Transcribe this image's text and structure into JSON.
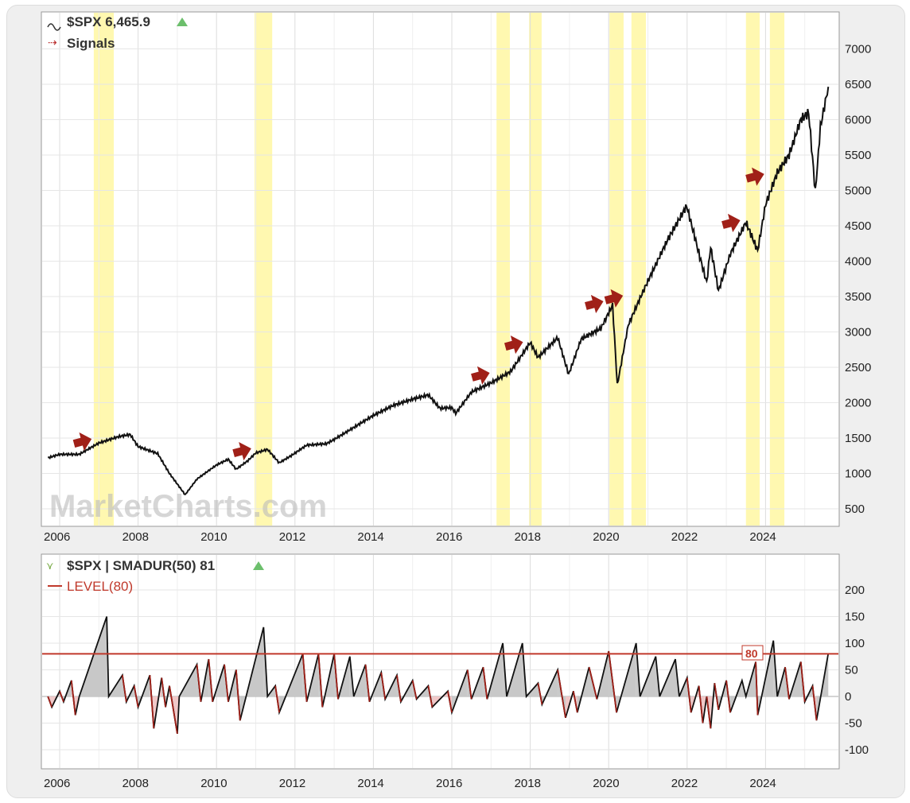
{
  "header": {
    "symbol_label": "$SPX 6,465.9",
    "signals_label": "Signals",
    "lower_label": "$SPX | SMADUR(50) 81",
    "level_label": "LEVEL(80)",
    "level_tag": "80",
    "watermark": "MarketCharts.com"
  },
  "colors": {
    "price": "#111111",
    "band": "#fff8b0",
    "arrow": "#a02018",
    "level": "#c0392b",
    "up": "#6cbf6c",
    "osc_pos": "#c8c8c8",
    "osc_neg": "#f0c8c8"
  },
  "chart_data": [
    {
      "type": "line",
      "title": "$SPX 6,465.9",
      "ylim": [
        250,
        7400
      ],
      "xlim": [
        2005.6,
        2025.75
      ],
      "yticks": [
        500,
        1000,
        1500,
        2000,
        2500,
        3000,
        3500,
        4000,
        4500,
        5000,
        5500,
        6000,
        6500,
        7000
      ],
      "xticks": [
        2006,
        2008,
        2010,
        2012,
        2014,
        2016,
        2018,
        2020,
        2022,
        2024
      ],
      "bands": [
        [
          2006.87,
          2007.38
        ],
        [
          2010.97,
          2011.42
        ],
        [
          2017.14,
          2017.48
        ],
        [
          2017.97,
          2018.29
        ],
        [
          2020.02,
          2020.38
        ],
        [
          2020.58,
          2020.95
        ],
        [
          2023.5,
          2023.85
        ],
        [
          2024.11,
          2024.48
        ]
      ],
      "signals": [
        [
          2006.6,
          1455
        ],
        [
          2010.67,
          1320
        ],
        [
          2016.75,
          2390
        ],
        [
          2017.6,
          2825
        ],
        [
          2019.65,
          3400
        ],
        [
          2020.15,
          3480
        ],
        [
          2023.14,
          4545
        ],
        [
          2023.75,
          5200
        ]
      ],
      "series": [
        [
          2005.7,
          1220
        ],
        [
          2006.0,
          1270
        ],
        [
          2006.5,
          1270
        ],
        [
          2007.0,
          1430
        ],
        [
          2007.5,
          1520
        ],
        [
          2007.8,
          1550
        ],
        [
          2008.0,
          1380
        ],
        [
          2008.5,
          1280
        ],
        [
          2008.8,
          1000
        ],
        [
          2009.0,
          850
        ],
        [
          2009.2,
          700
        ],
        [
          2009.5,
          920
        ],
        [
          2010.0,
          1120
        ],
        [
          2010.3,
          1200
        ],
        [
          2010.5,
          1060
        ],
        [
          2010.8,
          1180
        ],
        [
          2011.0,
          1290
        ],
        [
          2011.3,
          1340
        ],
        [
          2011.6,
          1150
        ],
        [
          2011.9,
          1250
        ],
        [
          2012.3,
          1400
        ],
        [
          2012.8,
          1420
        ],
        [
          2013.0,
          1480
        ],
        [
          2013.5,
          1650
        ],
        [
          2014.0,
          1820
        ],
        [
          2014.5,
          1960
        ],
        [
          2015.0,
          2050
        ],
        [
          2015.4,
          2110
        ],
        [
          2015.7,
          1920
        ],
        [
          2016.0,
          1930
        ],
        [
          2016.1,
          1850
        ],
        [
          2016.5,
          2150
        ],
        [
          2017.0,
          2280
        ],
        [
          2017.5,
          2440
        ],
        [
          2018.0,
          2850
        ],
        [
          2018.2,
          2640
        ],
        [
          2018.7,
          2920
        ],
        [
          2018.98,
          2400
        ],
        [
          2019.3,
          2900
        ],
        [
          2019.8,
          3050
        ],
        [
          2020.1,
          3380
        ],
        [
          2020.22,
          2250
        ],
        [
          2020.5,
          3100
        ],
        [
          2020.9,
          3600
        ],
        [
          2021.5,
          4300
        ],
        [
          2021.99,
          4780
        ],
        [
          2022.4,
          3900
        ],
        [
          2022.5,
          3700
        ],
        [
          2022.6,
          4200
        ],
        [
          2022.8,
          3580
        ],
        [
          2023.1,
          4100
        ],
        [
          2023.5,
          4550
        ],
        [
          2023.8,
          4150
        ],
        [
          2024.0,
          4800
        ],
        [
          2024.3,
          5250
        ],
        [
          2024.6,
          5500
        ],
        [
          2024.9,
          6000
        ],
        [
          2025.1,
          6100
        ],
        [
          2025.27,
          4980
        ],
        [
          2025.4,
          5900
        ],
        [
          2025.6,
          6465
        ]
      ]
    },
    {
      "type": "area",
      "title": "$SPX | SMADUR(50) 81",
      "ylim": [
        -130,
        260
      ],
      "xlim": [
        2005.6,
        2025.75
      ],
      "yticks": [
        -100,
        -50,
        0,
        50,
        100,
        150,
        200
      ],
      "level": 80,
      "series": [
        [
          2005.7,
          0
        ],
        [
          2005.8,
          -20
        ],
        [
          2006.0,
          10
        ],
        [
          2006.1,
          -10
        ],
        [
          2006.3,
          30
        ],
        [
          2006.4,
          -35
        ],
        [
          2006.5,
          0
        ],
        [
          2007.2,
          150
        ],
        [
          2007.25,
          0
        ],
        [
          2007.6,
          40
        ],
        [
          2007.7,
          -10
        ],
        [
          2007.9,
          20
        ],
        [
          2008.0,
          -20
        ],
        [
          2008.3,
          40
        ],
        [
          2008.4,
          -60
        ],
        [
          2008.6,
          35
        ],
        [
          2008.7,
          -20
        ],
        [
          2008.8,
          20
        ],
        [
          2009.0,
          -70
        ],
        [
          2009.05,
          0
        ],
        [
          2009.5,
          60
        ],
        [
          2009.6,
          -10
        ],
        [
          2009.8,
          70
        ],
        [
          2009.9,
          -10
        ],
        [
          2010.2,
          60
        ],
        [
          2010.3,
          -10
        ],
        [
          2010.5,
          50
        ],
        [
          2010.6,
          -45
        ],
        [
          2011.2,
          130
        ],
        [
          2011.3,
          0
        ],
        [
          2011.5,
          20
        ],
        [
          2011.6,
          -30
        ],
        [
          2012.2,
          80
        ],
        [
          2012.3,
          -10
        ],
        [
          2012.6,
          80
        ],
        [
          2012.7,
          -20
        ],
        [
          2013.0,
          80
        ],
        [
          2013.1,
          -5
        ],
        [
          2013.4,
          75
        ],
        [
          2013.5,
          0
        ],
        [
          2013.8,
          60
        ],
        [
          2013.9,
          -10
        ],
        [
          2014.2,
          45
        ],
        [
          2014.3,
          -5
        ],
        [
          2014.6,
          40
        ],
        [
          2014.7,
          -10
        ],
        [
          2015.0,
          30
        ],
        [
          2015.1,
          -5
        ],
        [
          2015.4,
          20
        ],
        [
          2015.5,
          -20
        ],
        [
          2015.9,
          10
        ],
        [
          2016.0,
          -30
        ],
        [
          2016.4,
          50
        ],
        [
          2016.5,
          -5
        ],
        [
          2016.8,
          55
        ],
        [
          2016.9,
          -5
        ],
        [
          2017.3,
          100
        ],
        [
          2017.4,
          0
        ],
        [
          2017.8,
          100
        ],
        [
          2017.9,
          0
        ],
        [
          2018.2,
          25
        ],
        [
          2018.3,
          -15
        ],
        [
          2018.7,
          50
        ],
        [
          2018.9,
          -40
        ],
        [
          2019.1,
          10
        ],
        [
          2019.2,
          -30
        ],
        [
          2019.5,
          55
        ],
        [
          2019.7,
          -5
        ],
        [
          2020.0,
          85
        ],
        [
          2020.2,
          -30
        ],
        [
          2020.7,
          100
        ],
        [
          2020.8,
          0
        ],
        [
          2021.2,
          75
        ],
        [
          2021.3,
          0
        ],
        [
          2021.7,
          70
        ],
        [
          2021.8,
          0
        ],
        [
          2022.0,
          35
        ],
        [
          2022.1,
          -30
        ],
        [
          2022.3,
          20
        ],
        [
          2022.4,
          -50
        ],
        [
          2022.5,
          0
        ],
        [
          2022.6,
          -60
        ],
        [
          2022.7,
          25
        ],
        [
          2022.8,
          -25
        ],
        [
          2023.0,
          30
        ],
        [
          2023.1,
          -30
        ],
        [
          2023.4,
          30
        ],
        [
          2023.5,
          0
        ],
        [
          2023.75,
          65
        ],
        [
          2023.8,
          -35
        ],
        [
          2024.2,
          105
        ],
        [
          2024.3,
          0
        ],
        [
          2024.5,
          55
        ],
        [
          2024.6,
          -5
        ],
        [
          2024.9,
          65
        ],
        [
          2025.0,
          -10
        ],
        [
          2025.2,
          20
        ],
        [
          2025.3,
          -45
        ],
        [
          2025.6,
          81
        ]
      ]
    }
  ]
}
